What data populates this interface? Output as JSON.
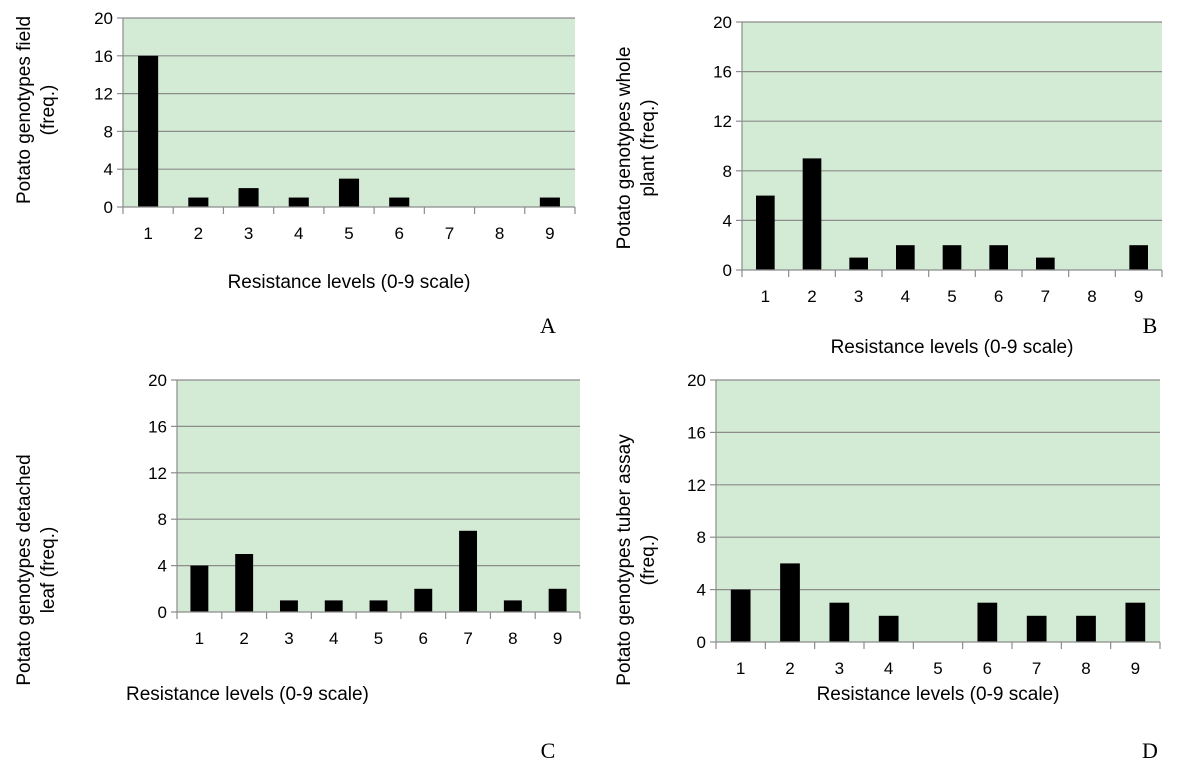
{
  "colors": {
    "plot_bg": "#d3ead5",
    "bar": "#000000",
    "grid": "#8c8c8c",
    "axis": "#8c8c8c"
  },
  "chart_data": [
    {
      "panel": "A",
      "type": "bar",
      "categories": [
        "1",
        "2",
        "3",
        "4",
        "5",
        "6",
        "7",
        "8",
        "9"
      ],
      "values": [
        16,
        1,
        2,
        1,
        3,
        1,
        0,
        0,
        1
      ],
      "ylim": [
        0,
        20
      ],
      "yticks": [
        0,
        4,
        8,
        12,
        16,
        20
      ],
      "xlabel": "Resistance levels (0-9 scale)",
      "ylabel": [
        "Potato genotypes field",
        "(freq.)"
      ],
      "grid": true
    },
    {
      "panel": "B",
      "type": "bar",
      "categories": [
        "1",
        "2",
        "3",
        "4",
        "5",
        "6",
        "7",
        "8",
        "9"
      ],
      "values": [
        6,
        9,
        1,
        2,
        2,
        2,
        1,
        0,
        2
      ],
      "ylim": [
        0,
        20
      ],
      "yticks": [
        0,
        4,
        8,
        12,
        16,
        20
      ],
      "xlabel": "Resistance levels (0-9 scale)",
      "ylabel": [
        "Potato genotypes whole",
        "plant (freq.)"
      ],
      "grid": true
    },
    {
      "panel": "C",
      "type": "bar",
      "categories": [
        "1",
        "2",
        "3",
        "4",
        "5",
        "6",
        "7",
        "8",
        "9"
      ],
      "values": [
        4,
        5,
        1,
        1,
        1,
        2,
        7,
        1,
        2
      ],
      "ylim": [
        0,
        20
      ],
      "yticks": [
        0,
        4,
        8,
        12,
        16,
        20
      ],
      "xlabel": "Resistance levels (0-9 scale)",
      "ylabel": [
        "Potato genotypes detached",
        "leaf (freq.)"
      ],
      "grid": true
    },
    {
      "panel": "D",
      "type": "bar",
      "categories": [
        "1",
        "2",
        "3",
        "4",
        "5",
        "6",
        "7",
        "8",
        "9"
      ],
      "values": [
        4,
        6,
        3,
        2,
        0,
        3,
        2,
        2,
        3
      ],
      "ylim": [
        0,
        20
      ],
      "yticks": [
        0,
        4,
        8,
        12,
        16,
        20
      ],
      "xlabel": "Resistance levels (0-9 scale)",
      "ylabel": [
        "Potato genotypes tuber assay",
        "(freq.)"
      ],
      "grid": true
    }
  ]
}
